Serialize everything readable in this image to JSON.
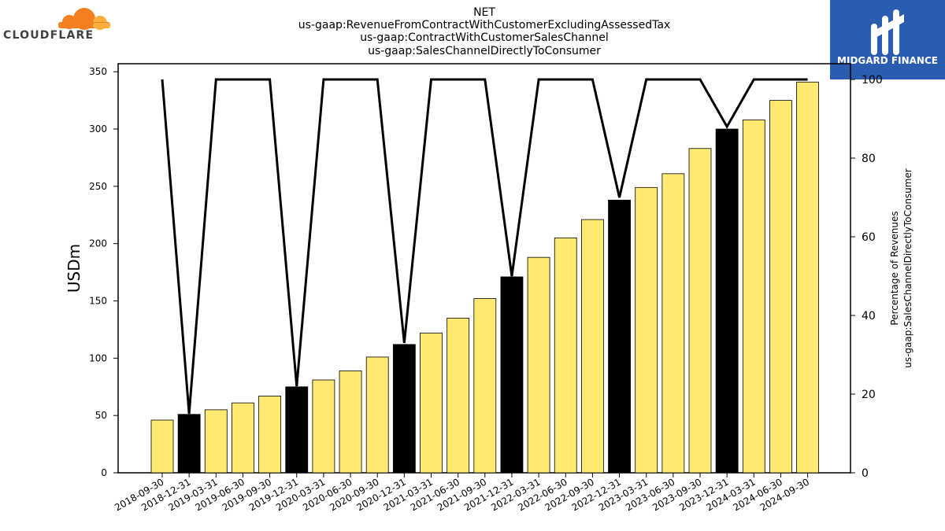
{
  "logos": {
    "left": {
      "text": "CLOUDFLARE",
      "icon": "cloud-icon",
      "color": "#f38020"
    },
    "right": {
      "text": "MIDGARD FINANCE",
      "icon": "midgard-logo-icon",
      "color": "#2a5db0"
    }
  },
  "colors": {
    "bar_yellow": "#ffe970",
    "bar_black": "#000000",
    "line": "#000000"
  },
  "chart_data": {
    "type": "bar",
    "title": [
      "NET",
      "us-gaap:RevenueFromContractWithCustomerExcludingAssessedTax",
      "us-gaap:ContractWithCustomerSalesChannel",
      "us-gaap:SalesChannelDirectlyToConsumer"
    ],
    "ylabel": "USDm",
    "y2label": [
      "Percentage of Revenues",
      "us-gaap:SalesChannelDirectlyToConsumer"
    ],
    "ylim": [
      0,
      357
    ],
    "y2lim": [
      0,
      104
    ],
    "yticks": [
      0,
      50,
      100,
      150,
      200,
      250,
      300,
      350
    ],
    "y2ticks": [
      0,
      20,
      40,
      60,
      80,
      100
    ],
    "categories": [
      "2018-09-30",
      "2018-12-31",
      "2019-03-31",
      "2019-06-30",
      "2019-09-30",
      "2019-12-31",
      "2020-03-31",
      "2020-06-30",
      "2020-09-30",
      "2020-12-31",
      "2021-03-31",
      "2021-06-30",
      "2021-09-30",
      "2021-12-31",
      "2022-03-31",
      "2022-06-30",
      "2022-09-30",
      "2022-12-31",
      "2023-03-31",
      "2023-06-30",
      "2023-09-30",
      "2023-12-31",
      "2024-03-31",
      "2024-06-30",
      "2024-09-30"
    ],
    "series": [
      {
        "type": "bar",
        "axis": "left",
        "values": [
          46,
          51,
          55,
          61,
          67,
          75,
          81,
          89,
          101,
          112,
          122,
          135,
          152,
          171,
          188,
          205,
          221,
          238,
          249,
          261,
          283,
          300,
          308,
          325,
          341
        ],
        "annual": [
          false,
          true,
          false,
          false,
          false,
          true,
          false,
          false,
          false,
          true,
          false,
          false,
          false,
          true,
          false,
          false,
          false,
          true,
          false,
          false,
          false,
          true,
          false,
          false,
          false
        ]
      },
      {
        "type": "line",
        "axis": "right",
        "values": [
          100,
          15,
          100,
          100,
          100,
          22,
          100,
          100,
          100,
          33,
          100,
          100,
          100,
          50,
          100,
          100,
          100,
          70,
          100,
          100,
          100,
          88,
          100,
          100,
          100
        ]
      }
    ]
  }
}
